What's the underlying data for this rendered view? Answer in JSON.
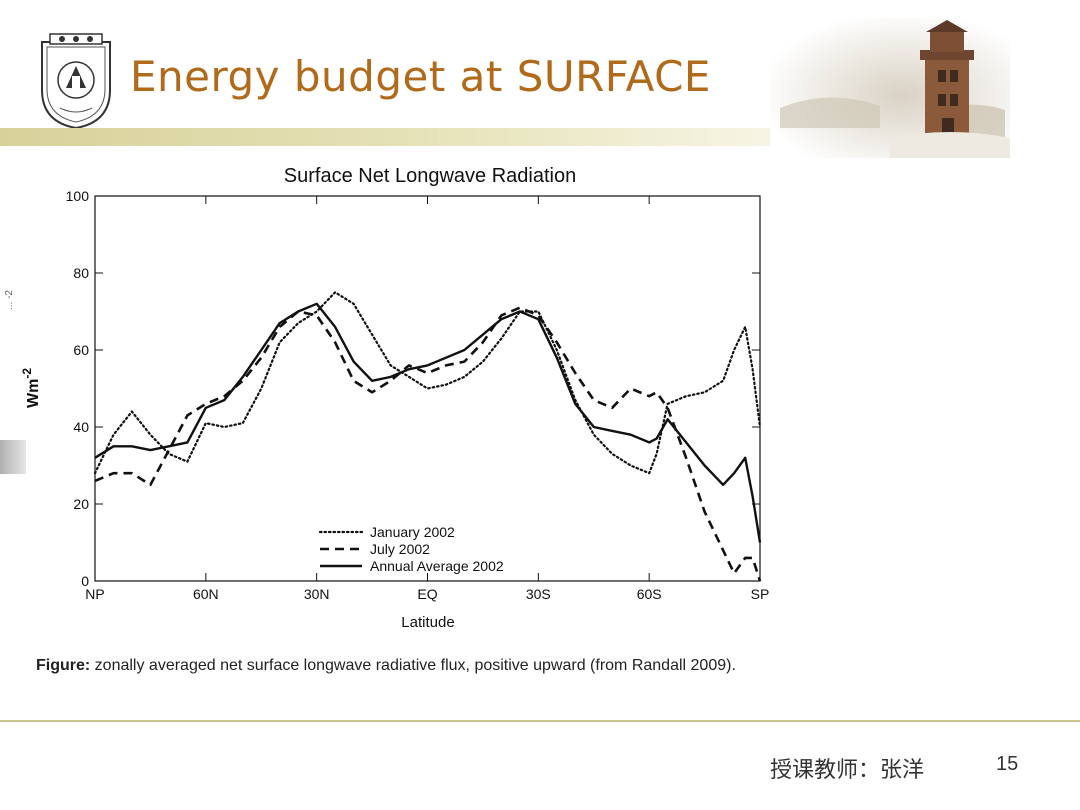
{
  "slide": {
    "title": "Energy budget at SURFACE",
    "caption_bold": "Figure:",
    "caption_text": " zonally averaged net surface longwave radiative flux, positive upward (from Randall 2009).",
    "instructor": "授课教师：张洋",
    "page_number": "15",
    "title_color": "#b06a1a",
    "rule_color": "#d7d19a"
  },
  "chart_data": {
    "type": "line",
    "title": "Surface Net Longwave Radiation",
    "xlabel": "Latitude",
    "ylabel": "Wm-2",
    "ylim": [
      0,
      100
    ],
    "xlim": [
      90,
      -90
    ],
    "x_ticks": [
      90,
      60,
      30,
      0,
      -30,
      -60,
      -90
    ],
    "x_tick_labels": [
      "NP",
      "60N",
      "30N",
      "EQ",
      "30S",
      "60S",
      "SP"
    ],
    "y_ticks": [
      0,
      20,
      40,
      60,
      80,
      100
    ],
    "y_tick_labels": [
      "0",
      "20",
      "40",
      "60",
      "80",
      "100"
    ],
    "grid": false,
    "legend_position": "lower-center",
    "series": [
      {
        "name": "January 2002",
        "style": "dotted",
        "x": [
          90,
          85,
          80,
          75,
          70,
          65,
          60,
          55,
          50,
          45,
          40,
          35,
          30,
          25,
          20,
          15,
          10,
          5,
          0,
          -5,
          -10,
          -15,
          -20,
          -25,
          -30,
          -35,
          -40,
          -45,
          -50,
          -55,
          -60,
          -62,
          -65,
          -70,
          -75,
          -80,
          -83,
          -86,
          -88,
          -90
        ],
        "y": [
          28,
          38,
          44,
          38,
          33,
          31,
          41,
          40,
          41,
          50,
          62,
          67,
          70,
          75,
          72,
          64,
          56,
          53,
          50,
          51,
          53,
          57,
          63,
          70,
          70,
          60,
          47,
          38,
          33,
          30,
          28,
          33,
          46,
          48,
          49,
          52,
          60,
          66,
          55,
          40
        ]
      },
      {
        "name": "July 2002",
        "style": "dashed",
        "x": [
          90,
          85,
          80,
          75,
          70,
          65,
          60,
          55,
          50,
          45,
          40,
          35,
          30,
          25,
          20,
          15,
          10,
          5,
          0,
          -5,
          -10,
          -15,
          -20,
          -25,
          -30,
          -35,
          -40,
          -45,
          -50,
          -55,
          -60,
          -62,
          -65,
          -70,
          -75,
          -80,
          -83,
          -86,
          -88,
          -90
        ],
        "y": [
          26,
          28,
          28,
          25,
          34,
          43,
          46,
          48,
          52,
          58,
          66,
          70,
          69,
          62,
          52,
          49,
          52,
          56,
          54,
          56,
          57,
          62,
          69,
          71,
          69,
          62,
          54,
          47,
          45,
          50,
          48,
          49,
          45,
          32,
          18,
          8,
          2,
          6,
          6,
          0
        ]
      },
      {
        "name": "Annual Average 2002",
        "style": "solid",
        "x": [
          90,
          85,
          80,
          75,
          70,
          65,
          60,
          55,
          50,
          45,
          40,
          35,
          30,
          25,
          20,
          15,
          10,
          5,
          0,
          -5,
          -10,
          -15,
          -20,
          -25,
          -30,
          -35,
          -40,
          -45,
          -50,
          -55,
          -60,
          -62,
          -65,
          -70,
          -75,
          -80,
          -83,
          -86,
          -88,
          -90
        ],
        "y": [
          32,
          35,
          35,
          34,
          35,
          36,
          45,
          47,
          53,
          60,
          67,
          70,
          72,
          66,
          57,
          52,
          53,
          55,
          56,
          58,
          60,
          64,
          68,
          70,
          68,
          58,
          46,
          40,
          39,
          38,
          36,
          37,
          42,
          36,
          30,
          25,
          28,
          32,
          22,
          10
        ]
      }
    ],
    "clipped_left_fragment": "... -2"
  }
}
